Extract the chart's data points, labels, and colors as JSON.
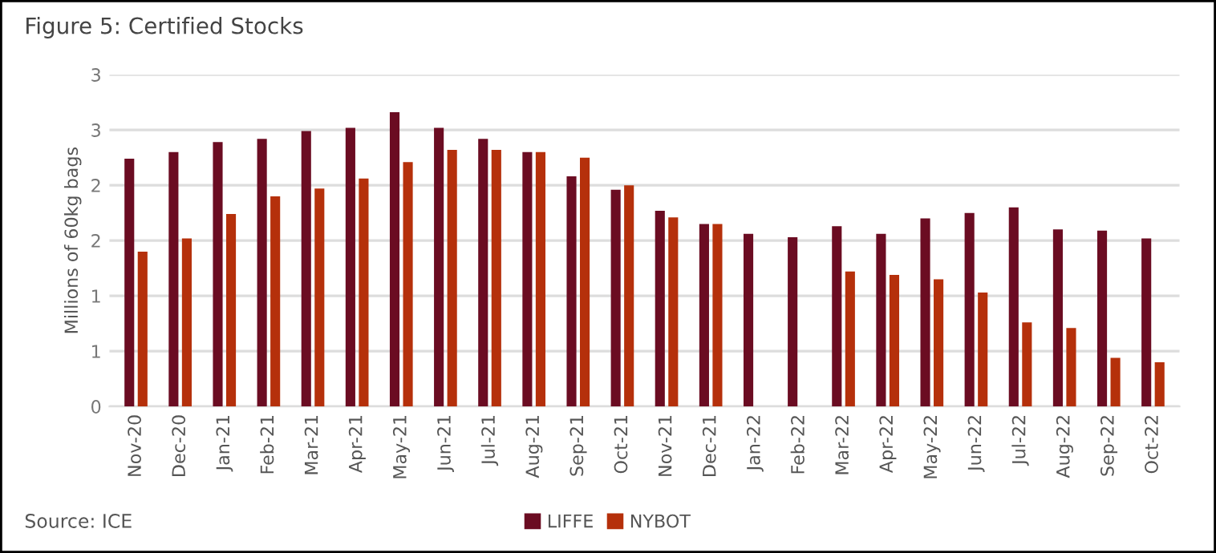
{
  "chart_data": {
    "type": "bar",
    "title": "Figure 5: Certified Stocks",
    "ylabel": "Millions of 60kg bags",
    "categories": [
      "Nov-20",
      "Dec-20",
      "Jan-21",
      "Feb-21",
      "Mar-21",
      "Apr-21",
      "May-21",
      "Jun-21",
      "Jul-21",
      "Aug-21",
      "Sep-21",
      "Oct-21",
      "Nov-21",
      "Dec-21",
      "Jan-22",
      "Feb-22",
      "Mar-22",
      "Apr-22",
      "May-22",
      "Jun-22",
      "Jul-22",
      "Aug-22",
      "Sep-22",
      "Oct-22"
    ],
    "series": [
      {
        "name": "LIFFE",
        "color": "#6b0c22",
        "values": [
          2.24,
          2.3,
          2.39,
          2.42,
          2.49,
          2.52,
          2.66,
          2.52,
          2.42,
          2.3,
          2.08,
          1.96,
          1.77,
          1.65,
          1.56,
          1.53,
          1.63,
          1.56,
          1.7,
          1.75,
          1.8,
          1.6,
          1.59,
          1.52
        ]
      },
      {
        "name": "NYBOT",
        "color": "#b5300b",
        "values": [
          1.4,
          1.52,
          1.74,
          1.9,
          1.97,
          2.06,
          2.21,
          2.32,
          2.32,
          2.3,
          2.25,
          2.0,
          1.71,
          1.65,
          null,
          null,
          1.22,
          1.19,
          1.15,
          1.03,
          0.76,
          0.71,
          0.44,
          0.4
        ]
      }
    ],
    "ylim": [
      0,
      3
    ],
    "yticks": [
      0,
      {
        "value": 0.5,
        "label": "1"
      },
      1,
      {
        "value": 1.5,
        "label": "2"
      },
      2,
      {
        "value": 2.5,
        "label": "3"
      },
      3
    ],
    "grid": "y",
    "legend": "bottom",
    "annotations": [
      "Source: ICE"
    ]
  }
}
